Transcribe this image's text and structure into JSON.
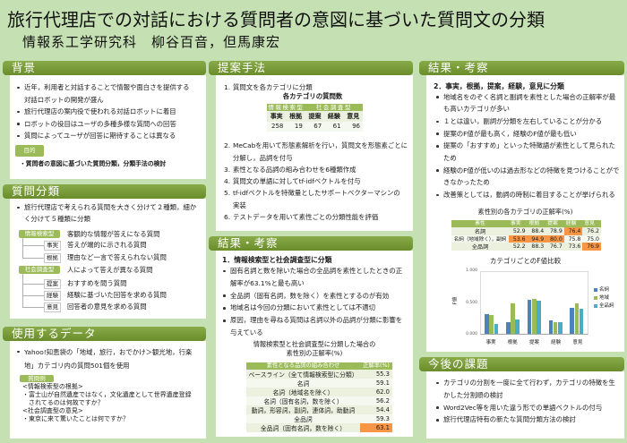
{
  "title": "旅行代理店での対話における質問者の意図に基づいた質問文の分類",
  "authors": "情報系工学研究科　柳谷百音，但馬康宏",
  "colors": {
    "background": "#c5e0b3",
    "header": "#76923c",
    "badge": "#9bbb59",
    "table_header": "#9bbb59",
    "table_row": "#ebf1de",
    "highlight": "#f79646"
  },
  "background": {
    "heading": "背景",
    "bullets": [
      "近年，利用者と対話することで情報や面白さを提供する\n対話ロボットの開発が盛ん",
      "旅行代理店の案内役で使われる対話ロボットに着目",
      "ロボットの役目はユーザの多種多様な質問への回答",
      "質問によってユーザが回答に期待することは異なる"
    ],
    "purpose_label": "目的",
    "purpose_text": "・質問者の意図に基づいた質問分類，分類手法の検討"
  },
  "classification": {
    "heading": "質問分類",
    "bullet": "旅行代理店で考えられる質問を大きく分けて２種類，細か\nく分けて５種類に分類",
    "groups": [
      {
        "label": "情報検索型",
        "desc": "客観的な情報が答えになる質問",
        "children": [
          {
            "label": "事実",
            "desc": "答えが端的に示される質問"
          },
          {
            "label": "根拠",
            "desc": "理由など一言で答えられない質問"
          }
        ]
      },
      {
        "label": "社会調査型",
        "desc": "人によって答えが異なる質問",
        "children": [
          {
            "label": "提案",
            "desc": "おすすめを問う質問"
          },
          {
            "label": "経験",
            "desc": "経験に基づいた回答を求める質問"
          },
          {
            "label": "意見",
            "desc": "回答者の意見を求める質問"
          }
        ]
      }
    ]
  },
  "dataset": {
    "heading": "使用するデータ",
    "bullet": "Yahoo!知恵袋の「地域，旅行，おでかけ＞観光地，行楽\n地」カテゴリ内の質問501個を使用",
    "example_label": "質問例",
    "examples": [
      "<情報検索型の根拠>",
      "・富士山が自然遺産ではなく，文化遺産として世界遺産登録",
      "　されてるのは何故ですか？",
      "<社会調査型の意見>",
      "・東京に来て驚いたことは何ですか？"
    ]
  },
  "method": {
    "heading": "提案手法",
    "step1": {
      "num": "1.",
      "text": "質問文を各カテゴリに分類"
    },
    "table_caption": "各カテゴリの質問数",
    "table": {
      "groups": [
        "情報検索型",
        "社会調査型"
      ],
      "headers": [
        "事実",
        "根拠",
        "提案",
        "経験",
        "意見"
      ],
      "values": [
        "258",
        "19",
        "67",
        "61",
        "96"
      ]
    },
    "steps": [
      {
        "num": "2.",
        "text": "MeCabを用いて形態素解析を行い，質問文を形態素ごとに\n分解し，品詞を付与"
      },
      {
        "num": "3.",
        "text": "素性となる品詞の組み合わせを6種類作成"
      },
      {
        "num": "4.",
        "text": "質問文の単語に対してtf-idfベクトルを付与"
      },
      {
        "num": "5.",
        "text": "tf-idfベクトルを特徴量としたサポートベクターマシンの\n実装"
      },
      {
        "num": "6.",
        "text": "テストデータを用いて素性ごとの分類性能を評価"
      }
    ]
  },
  "results1": {
    "heading": "結果・考察",
    "subheading": "1．情報検索型と社会調査型に分類",
    "bullets": [
      "固有名詞と数を除いた場合の全品詞を素性としたときの正\n解率が63.1%と最も高い",
      "全品詞（固有名詞，数を除く）を素性とするのが有効",
      "地域名は今回の分類において素性としては不適切",
      "原因，理由を尋ねる質問は名詞以外の品詞が分類に影響を\n与えている"
    ],
    "table_caption": "情報検索型と社会調査型に分類した場合の\n素性別の正解率(%)",
    "table": {
      "headers": [
        "素性となる品詞の組み合わせ",
        "正解率(%)"
      ],
      "rows": [
        {
          "label": "ベースライン（全て情報検索型に分類）",
          "value": "55.3",
          "highlight": false
        },
        {
          "label": "名詞",
          "value": "59.1",
          "highlight": false
        },
        {
          "label": "名詞（地域名を除く）",
          "value": "62.0",
          "highlight": false
        },
        {
          "label": "名詞（固有名詞，数を除く）",
          "value": "56.2",
          "highlight": false
        },
        {
          "label": "動詞，形容詞，副詞，連体詞，助動詞",
          "value": "54.4",
          "highlight": false
        },
        {
          "label": "全品詞",
          "value": "59.3",
          "highlight": false
        },
        {
          "label": "全品詞（固有名詞，数を除く）",
          "value": "63.1",
          "highlight": true
        }
      ]
    }
  },
  "results2": {
    "heading": "結果・考察",
    "subheading": "2．事実，根拠，提案，経験，意見に分類",
    "bullets": [
      "地域名をのぞく名詞と副詞を素性とした場合の正解率が最\nも高いカテゴリが多い",
      "１とは違い，副詞が分類を左右していることが分かる",
      "提案のF値が最も高く，経験のF値が最も低い",
      "提案の「おすすめ」といった特徴語が素性として見られた\nため",
      "経験のF値が低いのは過去形などの特徴を見つけることがで\nきなかったため",
      "改善策としては，動詞の時制に着目することが挙げられる"
    ],
    "table_caption": "素性別の各カテゴリの正解率(%)",
    "table": {
      "headers": [
        "素性",
        "事実",
        "根拠",
        "提案",
        "経験",
        "意見"
      ],
      "rows": [
        {
          "label": "名詞",
          "values": [
            "52.9",
            "88.4",
            "78.9",
            "76.4",
            "76.2"
          ],
          "highlight": [
            false,
            false,
            false,
            true,
            false
          ]
        },
        {
          "label": "名詞（地域除く），副詞",
          "values": [
            "53.6",
            "94.9",
            "80.0",
            "75.8",
            "75.0"
          ],
          "highlight": [
            true,
            true,
            true,
            false,
            false
          ]
        },
        {
          "label": "全品詞",
          "values": [
            "52.2",
            "88.3",
            "76.7",
            "73.6",
            "76.9"
          ],
          "highlight": [
            false,
            false,
            false,
            false,
            true
          ]
        }
      ]
    }
  },
  "future": {
    "heading": "今後の課題",
    "bullets": [
      "カテゴリの分割を一度に全て行わず，カテゴリの特徴を生\nかした分割順の検討",
      "Word2Vec等を用いた違う形での単語ベクトルの付与",
      "旅行代理店特有の新たな質問分類方法の検討"
    ]
  },
  "chart_data": {
    "type": "bar",
    "title": "カテゴリごとのF値比較",
    "xlabel": "",
    "ylabel": "F値",
    "ylim": [
      0,
      1
    ],
    "yticks": [
      "1.000",
      "0.500",
      "0.000"
    ],
    "grid": false,
    "legend_position": "right",
    "categories": [
      "事実",
      "根拠",
      "提案",
      "経験",
      "意見"
    ],
    "series": [
      {
        "name": "名詞",
        "color": "#4f81bd",
        "values": [
          0.31,
          0.19,
          0.55,
          0.21,
          0.42
        ]
      },
      {
        "name": "地域",
        "color": "#9bbb59",
        "values": [
          0.3,
          0.49,
          0.56,
          0.19,
          0.49
        ]
      },
      {
        "name": "全品詞",
        "color": "#4bacc6",
        "values": [
          0.16,
          0.23,
          0.53,
          0.19,
          0.4
        ]
      }
    ]
  }
}
